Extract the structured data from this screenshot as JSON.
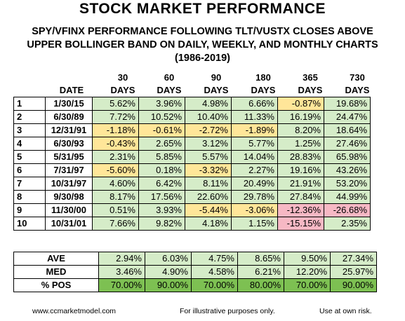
{
  "title": "STOCK MARKET PERFORMANCE",
  "subtitle_lines": [
    "SPY/VFINX PERFORMANCE FOLLOWING TLT/VUSTX CLOSES ABOVE",
    "UPPER BOLLINGER BAND ON DAILY, WEEKLY, AND MONTHLY CHARTS",
    "(1986-2019)"
  ],
  "headers": {
    "date": "DATE",
    "periods": [
      {
        "top": "30",
        "bottom": "DAYS"
      },
      {
        "top": "60",
        "bottom": "DAYS"
      },
      {
        "top": "90",
        "bottom": "DAYS"
      },
      {
        "top": "180",
        "bottom": "DAYS"
      },
      {
        "top": "365",
        "bottom": "DAYS"
      },
      {
        "top": "730",
        "bottom": "DAYS"
      }
    ]
  },
  "rows": [
    {
      "n": "1",
      "date": "1/30/15",
      "values": [
        "5.62%",
        "3.96%",
        "4.98%",
        "6.66%",
        "-0.87%",
        "19.68%"
      ],
      "colors": [
        "g",
        "g",
        "g",
        "g",
        "y",
        "g"
      ]
    },
    {
      "n": "2",
      "date": "6/30/89",
      "values": [
        "7.72%",
        "10.52%",
        "10.40%",
        "11.33%",
        "16.19%",
        "24.47%"
      ],
      "colors": [
        "g",
        "g",
        "g",
        "g",
        "g",
        "g"
      ]
    },
    {
      "n": "3",
      "date": "12/31/91",
      "values": [
        "-1.18%",
        "-0.61%",
        "-2.72%",
        "-1.89%",
        "8.20%",
        "18.64%"
      ],
      "colors": [
        "y",
        "y",
        "y",
        "y",
        "g",
        "g"
      ]
    },
    {
      "n": "4",
      "date": "6/30/93",
      "values": [
        "-0.43%",
        "2.65%",
        "3.12%",
        "5.77%",
        "1.25%",
        "27.46%"
      ],
      "colors": [
        "y",
        "g",
        "g",
        "g",
        "g",
        "g"
      ]
    },
    {
      "n": "5",
      "date": "5/31/95",
      "values": [
        "2.31%",
        "5.85%",
        "5.57%",
        "14.04%",
        "28.83%",
        "65.98%"
      ],
      "colors": [
        "g",
        "g",
        "g",
        "g",
        "g",
        "g"
      ]
    },
    {
      "n": "6",
      "date": "7/31/97",
      "values": [
        "-5.60%",
        "0.18%",
        "-3.32%",
        "2.27%",
        "19.16%",
        "43.26%"
      ],
      "colors": [
        "y",
        "g",
        "y",
        "g",
        "g",
        "g"
      ]
    },
    {
      "n": "7",
      "date": "10/31/97",
      "values": [
        "4.60%",
        "6.42%",
        "8.11%",
        "20.49%",
        "21.91%",
        "53.20%"
      ],
      "colors": [
        "g",
        "g",
        "g",
        "g",
        "g",
        "g"
      ]
    },
    {
      "n": "8",
      "date": "9/30/98",
      "values": [
        "8.17%",
        "17.56%",
        "22.60%",
        "29.78%",
        "27.84%",
        "44.99%"
      ],
      "colors": [
        "g",
        "g",
        "g",
        "g",
        "g",
        "g"
      ]
    },
    {
      "n": "9",
      "date": "11/30/00",
      "values": [
        "0.51%",
        "3.93%",
        "-5.44%",
        "-3.06%",
        "-12.36%",
        "-26.68%"
      ],
      "colors": [
        "g",
        "g",
        "y",
        "y",
        "r",
        "r"
      ]
    },
    {
      "n": "10",
      "date": "10/31/01",
      "values": [
        "7.66%",
        "9.82%",
        "4.18%",
        "1.15%",
        "-15.15%",
        "2.35%"
      ],
      "colors": [
        "g",
        "g",
        "g",
        "g",
        "r",
        "g"
      ]
    }
  ],
  "summary": [
    {
      "label": "AVE",
      "values": [
        "2.94%",
        "6.03%",
        "4.75%",
        "8.65%",
        "9.50%",
        "27.34%"
      ],
      "colors": [
        "g",
        "g",
        "g",
        "g",
        "g",
        "g"
      ]
    },
    {
      "label": "MED",
      "values": [
        "3.46%",
        "4.90%",
        "4.58%",
        "6.21%",
        "12.20%",
        "25.97%"
      ],
      "colors": [
        "g",
        "g",
        "g",
        "g",
        "g",
        "g"
      ]
    },
    {
      "label": "% POS",
      "values": [
        "70.00%",
        "90.00%",
        "70.00%",
        "80.00%",
        "70.00%",
        "90.00%"
      ],
      "colors": [
        "d",
        "d",
        "d",
        "d",
        "d",
        "d"
      ]
    }
  ],
  "footer": {
    "website": "www.ccmarketmodel.com",
    "disclaimer": "For illustrative purposes only.",
    "risk": "Use at own risk."
  }
}
